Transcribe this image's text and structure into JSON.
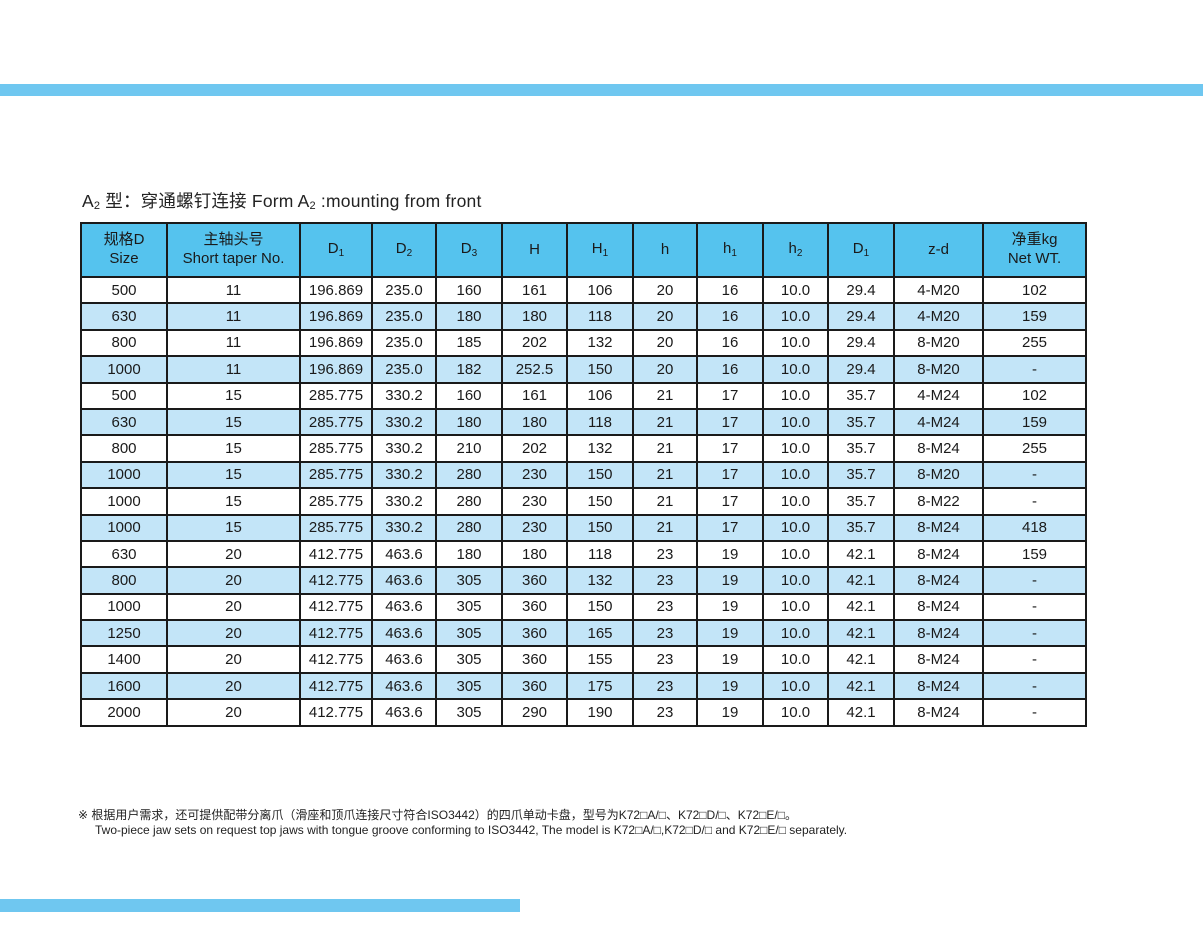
{
  "colors": {
    "accent": "#6FC7F0",
    "header_bg": "#55C3EE",
    "row_alt_bg": "#C3E5F8",
    "border": "#1A1A1A"
  },
  "title": {
    "p1": "A",
    "s1": "2",
    "p2": " 型：穿通螺钉连接 Form A",
    "s2": "2",
    "p3": " :mounting from front"
  },
  "table": {
    "columns": [
      {
        "line1": "规格D",
        "line2": "Size"
      },
      {
        "line1": "主轴头号",
        "line2": "Short taper No."
      },
      {
        "main": "D",
        "sub": "1"
      },
      {
        "main": "D",
        "sub": "2"
      },
      {
        "main": "D",
        "sub": "3"
      },
      {
        "main": "H",
        "sub": ""
      },
      {
        "main": "H",
        "sub": "1"
      },
      {
        "main": "h",
        "sub": ""
      },
      {
        "main": "h",
        "sub": "1"
      },
      {
        "main": "h",
        "sub": "2"
      },
      {
        "main": "D",
        "sub": "1"
      },
      {
        "main": "z-d",
        "sub": ""
      },
      {
        "line1": "净重kg",
        "line2": "Net WT."
      }
    ],
    "rows": [
      [
        "500",
        "11",
        "196.869",
        "235.0",
        "160",
        "161",
        "106",
        "20",
        "16",
        "10.0",
        "29.4",
        "4-M20",
        "102"
      ],
      [
        "630",
        "11",
        "196.869",
        "235.0",
        "180",
        "180",
        "118",
        "20",
        "16",
        "10.0",
        "29.4",
        "4-M20",
        "159"
      ],
      [
        "800",
        "11",
        "196.869",
        "235.0",
        "185",
        "202",
        "132",
        "20",
        "16",
        "10.0",
        "29.4",
        "8-M20",
        "255"
      ],
      [
        "1000",
        "11",
        "196.869",
        "235.0",
        "182",
        "252.5",
        "150",
        "20",
        "16",
        "10.0",
        "29.4",
        "8-M20",
        "-"
      ],
      [
        "500",
        "15",
        "285.775",
        "330.2",
        "160",
        "161",
        "106",
        "21",
        "17",
        "10.0",
        "35.7",
        "4-M24",
        "102"
      ],
      [
        "630",
        "15",
        "285.775",
        "330.2",
        "180",
        "180",
        "118",
        "21",
        "17",
        "10.0",
        "35.7",
        "4-M24",
        "159"
      ],
      [
        "800",
        "15",
        "285.775",
        "330.2",
        "210",
        "202",
        "132",
        "21",
        "17",
        "10.0",
        "35.7",
        "8-M24",
        "255"
      ],
      [
        "1000",
        "15",
        "285.775",
        "330.2",
        "280",
        "230",
        "150",
        "21",
        "17",
        "10.0",
        "35.7",
        "8-M20",
        "-"
      ],
      [
        "1000",
        "15",
        "285.775",
        "330.2",
        "280",
        "230",
        "150",
        "21",
        "17",
        "10.0",
        "35.7",
        "8-M22",
        "-"
      ],
      [
        "1000",
        "15",
        "285.775",
        "330.2",
        "280",
        "230",
        "150",
        "21",
        "17",
        "10.0",
        "35.7",
        "8-M24",
        "418"
      ],
      [
        "630",
        "20",
        "412.775",
        "463.6",
        "180",
        "180",
        "118",
        "23",
        "19",
        "10.0",
        "42.1",
        "8-M24",
        "159"
      ],
      [
        "800",
        "20",
        "412.775",
        "463.6",
        "305",
        "360",
        "132",
        "23",
        "19",
        "10.0",
        "42.1",
        "8-M24",
        "-"
      ],
      [
        "1000",
        "20",
        "412.775",
        "463.6",
        "305",
        "360",
        "150",
        "23",
        "19",
        "10.0",
        "42.1",
        "8-M24",
        "-"
      ],
      [
        "1250",
        "20",
        "412.775",
        "463.6",
        "305",
        "360",
        "165",
        "23",
        "19",
        "10.0",
        "42.1",
        "8-M24",
        "-"
      ],
      [
        "1400",
        "20",
        "412.775",
        "463.6",
        "305",
        "360",
        "155",
        "23",
        "19",
        "10.0",
        "42.1",
        "8-M24",
        "-"
      ],
      [
        "1600",
        "20",
        "412.775",
        "463.6",
        "305",
        "360",
        "175",
        "23",
        "19",
        "10.0",
        "42.1",
        "8-M24",
        "-"
      ],
      [
        "2000",
        "20",
        "412.775",
        "463.6",
        "305",
        "290",
        "190",
        "23",
        "19",
        "10.0",
        "42.1",
        "8-M24",
        "-"
      ]
    ]
  },
  "footnote": {
    "line1": "※ 根据用户需求，还可提供配带分离爪（滑座和顶爪连接尺寸符合ISO3442）的四爪单动卡盘，型号为K72□A/□、K72□D/□、K72□E/□。",
    "line2": "Two-piece jaw sets on request top jaws with tongue groove conforming to ISO3442, The model is K72□A/□,K72□D/□ and K72□E/□ separately."
  }
}
